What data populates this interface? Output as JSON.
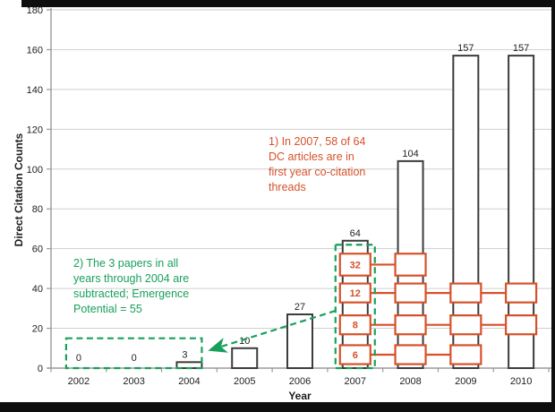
{
  "colors": {
    "orange": "#d6512a",
    "green": "#17a05b",
    "bar_outline": "#3c3c3c",
    "grid": "#cfcfcf",
    "axis": "#9a9a9a",
    "text": "#222222"
  },
  "chart_data": {
    "type": "bar",
    "title": "",
    "xlabel": "Year",
    "ylabel": "Direct Citation Counts",
    "ylim": [
      0,
      180
    ],
    "ytick_interval": 20,
    "grid": true,
    "legend": "none",
    "categories": [
      "2002",
      "2003",
      "2004",
      "2005",
      "2006",
      "2007",
      "2008",
      "2009",
      "2010"
    ],
    "values": [
      0,
      0,
      3,
      10,
      27,
      64,
      104,
      157,
      157
    ],
    "bar_labels": [
      "0",
      "0",
      "3",
      "10",
      "27",
      "64",
      "104",
      "157",
      "157"
    ],
    "bar_fill": "#ffffff",
    "threads": {
      "description": "first-year co-citation thread boxes overlaid in orange",
      "labeled_year": "2007",
      "levels": [
        {
          "label": "32",
          "value_bottom": 46.5,
          "value_top": 57.5,
          "years": [
            "2007",
            "2008"
          ]
        },
        {
          "label": "12",
          "value_bottom": 33.0,
          "value_top": 42.5,
          "years": [
            "2007",
            "2008",
            "2009",
            "2010"
          ]
        },
        {
          "label": "8",
          "value_bottom": 17.0,
          "value_top": 26.5,
          "years": [
            "2007",
            "2008",
            "2009",
            "2010"
          ]
        },
        {
          "label": "6",
          "value_bottom": 2.0,
          "value_top": 11.5,
          "years": [
            "2007",
            "2008",
            "2009"
          ]
        }
      ]
    },
    "highlights": [
      {
        "id": "early-years-box",
        "style": "green-dashed",
        "year_start": "2002",
        "year_end": "2004",
        "value_top": 15
      },
      {
        "id": "year-2007-box",
        "style": "green-dashed",
        "year_start": "2007",
        "year_end": "2007",
        "value_top": 62
      }
    ],
    "arrow": {
      "style": "green-dashed",
      "from": "year-2007-box",
      "to": "early-years-box"
    },
    "annotations": [
      {
        "id": "note-1",
        "color_role": "orange",
        "lines": [
          "1) In 2007, 58 of 64",
          "DC articles are in",
          "first year co-citation",
          "threads"
        ]
      },
      {
        "id": "note-2",
        "color_role": "green",
        "lines": [
          "2) The 3 papers in all",
          "years through 2004 are",
          "subtracted; Emergence",
          "Potential = 55"
        ]
      }
    ]
  }
}
